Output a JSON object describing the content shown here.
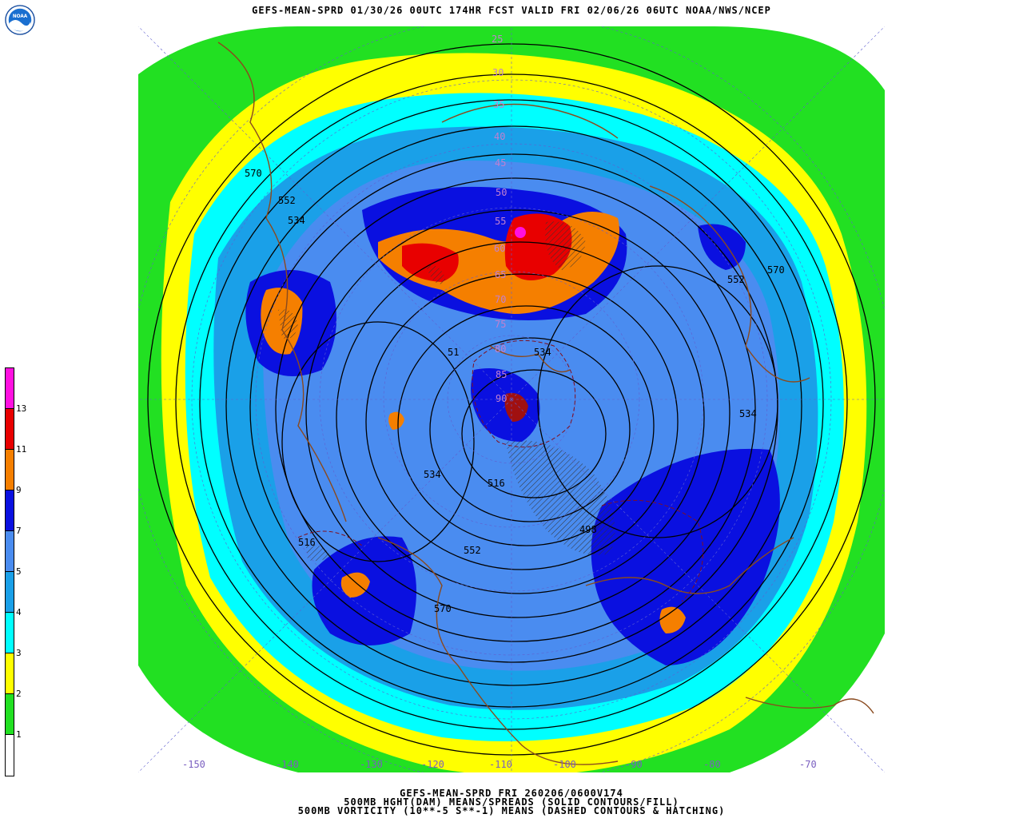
{
  "title": "GEFS-MEAN-SPRD 01/30/26 00UTC 174HR FCST VALID FRI 02/06/26 06UTC NOAA/NWS/NCEP",
  "logo": {
    "text": "NOAA",
    "icon": "noaa-logo-icon",
    "colors": {
      "sky": "#1a6fd0",
      "wave": "#ffffff"
    }
  },
  "colorbar": {
    "labels": [
      "1",
      "2",
      "3",
      "4",
      "5",
      "7",
      "9",
      "11",
      "13"
    ],
    "colors": [
      "#ffffff",
      "#22e022",
      "#ffff00",
      "#00ffff",
      "#1aa0e8",
      "#4a8cf0",
      "#0a10e0",
      "#f57f00",
      "#e80000",
      "#ff10e0"
    ]
  },
  "contour_labels": [
    "570",
    "552",
    "534",
    "552",
    "570",
    "51",
    "534",
    "516",
    "534",
    "552",
    "570",
    "516",
    "498",
    "534"
  ],
  "latitude_labels": [
    "25",
    "30",
    "35",
    "40",
    "45",
    "50",
    "55",
    "60",
    "65",
    "70",
    "75",
    "80",
    "85",
    "90"
  ],
  "longitude_labels": [
    "-150",
    "-140",
    "-130",
    "-120",
    "-110",
    "-100",
    "-90",
    "-80",
    "-70"
  ],
  "footer": {
    "line1": "GEFS-MEAN-SPRD FRI 260206/0600V174",
    "line2": "500MB HGHT(DAM) MEANS/SPREADS (SOLID CONTOURS/FILL)",
    "line3": "500MB VORTICITY (10**-5 S**-1) MEANS (DASHED CONTOURS & HATCHING)"
  }
}
